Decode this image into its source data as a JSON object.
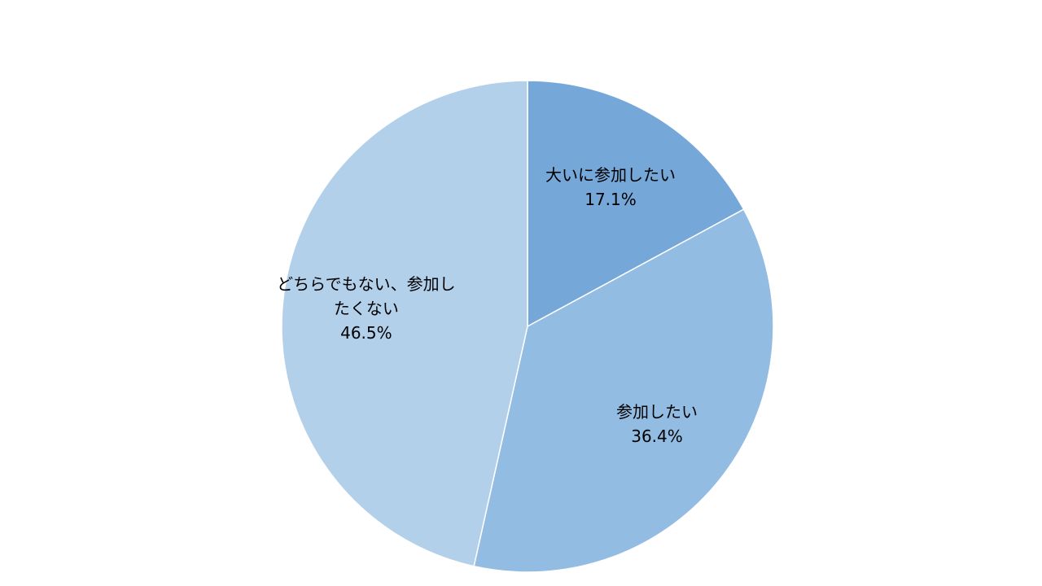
{
  "chart_data": {
    "type": "pie",
    "categories": [
      "大いに参加したい",
      "参加したい",
      "どちらでもない、参加したくない"
    ],
    "values": [
      17.1,
      36.4,
      46.5
    ],
    "value_labels": [
      "17.1%",
      "36.4%",
      "46.5%"
    ],
    "colors": [
      "#75a8d9",
      "#93bce3",
      "#b3d0ea"
    ]
  }
}
